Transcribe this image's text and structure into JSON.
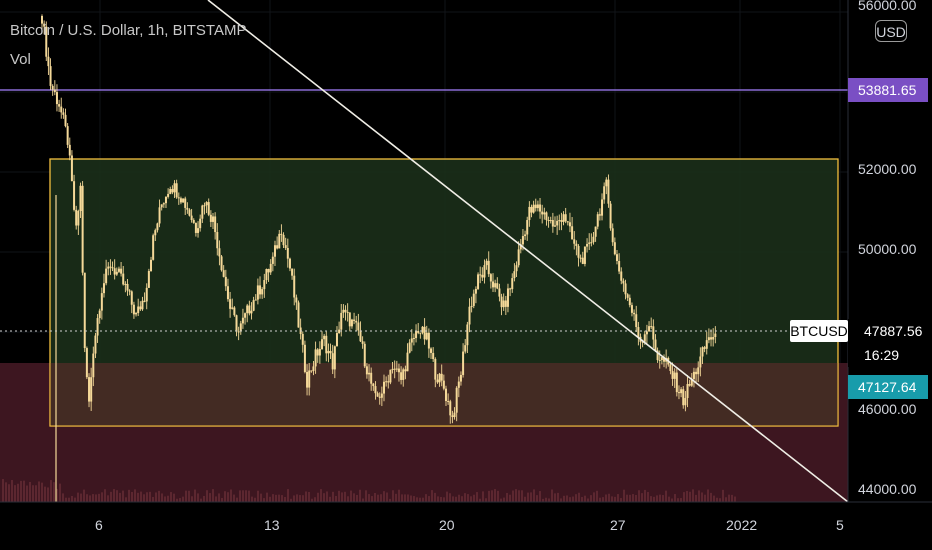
{
  "header": {
    "symbol_title": "Bitcoin / U.S. Dollar, 1h, BITSTAMP",
    "indicator_label": "Vol"
  },
  "scale": {
    "currency_button": "USD",
    "price_labels": [
      "56000.00",
      "52000.00",
      "50000.00",
      "46000.00",
      "44000.00"
    ]
  },
  "time_axis": {
    "labels": [
      "6",
      "13",
      "20",
      "27",
      "2022",
      "5"
    ]
  },
  "tags": {
    "resistance_line_value": "53881.65",
    "symbol_tag": "BTCUSD",
    "last_price": "47887.56",
    "countdown": "16:29",
    "support_zone_value": "47127.64"
  },
  "colors": {
    "background": "#000000",
    "candle": "#f5d999",
    "range_box_border": "#f3c03f",
    "range_box_fill": "#1b2f1a",
    "support_zone_fill": "#3d1620",
    "resistance_line": "#8b6cd6",
    "trend_line": "#f0eee6",
    "teal_tag": "#189cab",
    "purple_tag": "#7a4fc4"
  },
  "chart_data": {
    "type": "line",
    "title": "Bitcoin / U.S. Dollar, 1h, BITSTAMP",
    "x_ticks": [
      "6",
      "13",
      "20",
      "27",
      "2022",
      "5"
    ],
    "y_ticks": [
      56000,
      52000,
      50000,
      46000,
      44000
    ],
    "ylim": [
      43750,
      56150
    ],
    "grid": true,
    "annotations": {
      "horizontal_line": 53881.65,
      "range_box": [
        45550,
        52150
      ],
      "support_zone_top": 47127.64,
      "last_price": 47887.56,
      "trend_line": "descending"
    },
    "series": [
      {
        "values": [
          [
            0,
            55900
          ],
          [
            1,
            54200
          ],
          [
            2,
            53700
          ],
          [
            3,
            52800
          ],
          [
            4,
            50500
          ],
          [
            4.5,
            51600
          ],
          [
            5,
            47500
          ],
          [
            5.5,
            46200
          ],
          [
            6,
            47600
          ],
          [
            7,
            49100
          ],
          [
            8,
            49700
          ],
          [
            9,
            49400
          ],
          [
            10,
            49000
          ],
          [
            11,
            48400
          ],
          [
            12,
            48900
          ],
          [
            13,
            50300
          ],
          [
            14,
            51200
          ],
          [
            15,
            51700
          ],
          [
            16,
            51500
          ],
          [
            17,
            51100
          ],
          [
            18,
            50600
          ],
          [
            19,
            51300
          ],
          [
            20,
            50800
          ],
          [
            21,
            49700
          ],
          [
            22,
            48600
          ],
          [
            23,
            48000
          ],
          [
            24,
            48500
          ],
          [
            25,
            48900
          ],
          [
            26,
            49300
          ],
          [
            27,
            49800
          ],
          [
            28,
            50600
          ],
          [
            29,
            49600
          ],
          [
            30,
            48200
          ],
          [
            31,
            46800
          ],
          [
            32,
            47400
          ],
          [
            33,
            47800
          ],
          [
            34,
            47200
          ],
          [
            35,
            48500
          ],
          [
            36,
            48300
          ],
          [
            37,
            48000
          ],
          [
            38,
            47100
          ],
          [
            39,
            46300
          ],
          [
            40,
            46600
          ],
          [
            41,
            47200
          ],
          [
            42,
            46800
          ],
          [
            43,
            47600
          ],
          [
            44,
            48100
          ],
          [
            45,
            47800
          ],
          [
            46,
            47000
          ],
          [
            47,
            46600
          ],
          [
            48,
            45850
          ],
          [
            49,
            47000
          ],
          [
            50,
            48600
          ],
          [
            51,
            49300
          ],
          [
            52,
            49600
          ],
          [
            53,
            49100
          ],
          [
            54,
            48600
          ],
          [
            55,
            49300
          ],
          [
            56,
            50200
          ],
          [
            57,
            51000
          ],
          [
            58,
            51100
          ],
          [
            59,
            50900
          ],
          [
            60,
            50600
          ],
          [
            61,
            51000
          ],
          [
            62,
            50300
          ],
          [
            63,
            49800
          ],
          [
            64,
            50100
          ],
          [
            65,
            50900
          ],
          [
            66,
            51650
          ],
          [
            67,
            49900
          ],
          [
            68,
            49200
          ],
          [
            69,
            48500
          ],
          [
            70,
            47800
          ],
          [
            71,
            48200
          ],
          [
            72,
            47400
          ],
          [
            73,
            47200
          ],
          [
            74,
            46800
          ],
          [
            75,
            46300
          ],
          [
            76,
            46800
          ],
          [
            77,
            47300
          ],
          [
            78,
            47900
          ],
          [
            79,
            47750
          ]
        ]
      }
    ]
  }
}
